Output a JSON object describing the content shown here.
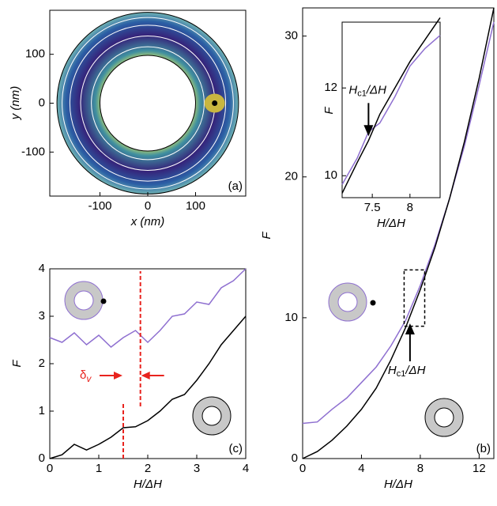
{
  "chart_data": [
    {
      "type": "ring",
      "label": "(a)",
      "xlabel": "x (nm)",
      "ylabel": "y (nm)",
      "xlim": [
        -205,
        205
      ],
      "ylim": [
        -190,
        190
      ],
      "xticks": [
        -100,
        0,
        100
      ],
      "yticks": [
        -100,
        0,
        100
      ],
      "outer_radius": 190,
      "inner_radius": 100,
      "vortex": [
        140,
        0
      ]
    },
    {
      "type": "line",
      "label": "(b)",
      "xlabel": "H/ΔH",
      "ylabel": "F",
      "xlim": [
        0,
        13
      ],
      "ylim": [
        0,
        32
      ],
      "xticks": [
        0,
        4,
        8,
        12
      ],
      "yticks": [
        0,
        10,
        20,
        30
      ],
      "x": [
        0,
        1,
        2,
        3,
        4,
        5,
        6,
        7,
        8,
        9,
        10,
        11,
        12,
        13
      ],
      "series": [
        {
          "name": "vortex",
          "color": "#8e6fd0",
          "values": [
            2.5,
            2.6,
            3.5,
            4.3,
            5.4,
            6.5,
            8,
            9.8,
            12.3,
            15.2,
            18.5,
            22.2,
            26.5,
            31
          ]
        },
        {
          "name": "no vortex",
          "color": "#000000",
          "values": [
            0,
            0.5,
            1.3,
            2.3,
            3.5,
            5,
            7,
            9.3,
            12,
            15,
            18.5,
            22.5,
            27,
            32
          ]
        }
      ],
      "arrow": {
        "x": 7.3,
        "y": 9.6,
        "text": [
          "H",
          "c1",
          "/ΔH"
        ]
      },
      "box": [
        6.9,
        8.3,
        9.4,
        13.4
      ]
    },
    {
      "type": "line",
      "xlabel": "H/ΔH",
      "ylabel": "F",
      "xlim": [
        7.1,
        8.4
      ],
      "ylim": [
        9.5,
        13.5
      ],
      "xticks": [
        7.5,
        8
      ],
      "yticks": [
        10,
        12
      ],
      "x": [
        7.1,
        7.3,
        7.45,
        7.6,
        7.8,
        8.0,
        8.1,
        8.2,
        8.4
      ],
      "series": [
        {
          "name": "vortex",
          "color": "#8e6fd0",
          "values": [
            9.8,
            10.4,
            11.0,
            11.2,
            11.8,
            12.5,
            12.7,
            12.9,
            13.2
          ]
        },
        {
          "name": "no vortex",
          "color": "#000000",
          "values": [
            9.6,
            10.3,
            10.8,
            11.4,
            12.0,
            12.6,
            12.85,
            13.1,
            13.6
          ]
        }
      ],
      "arrow_down": {
        "x": 7.45,
        "y": 10.9,
        "text": [
          "H",
          "c1",
          "/ΔH"
        ]
      }
    },
    {
      "type": "line",
      "label": "(c)",
      "xlabel": "H/ΔH",
      "ylabel": "F",
      "xlim": [
        0,
        4
      ],
      "ylim": [
        0,
        4
      ],
      "xticks": [
        0,
        1,
        2,
        3,
        4
      ],
      "yticks": [
        0,
        1,
        2,
        3,
        4
      ],
      "x": [
        0,
        0.25,
        0.5,
        0.75,
        1.0,
        1.25,
        1.5,
        1.75,
        2.0,
        2.25,
        2.5,
        2.75,
        3.0,
        3.25,
        3.5,
        3.75,
        4.0
      ],
      "series": [
        {
          "name": "vortex",
          "color": "#8e6fd0",
          "values": [
            2.55,
            2.45,
            2.65,
            2.4,
            2.6,
            2.35,
            2.55,
            2.7,
            2.45,
            2.7,
            3.0,
            3.05,
            3.3,
            3.25,
            3.6,
            3.75,
            4.0
          ]
        },
        {
          "name": "no vortex",
          "color": "#000000",
          "values": [
            0,
            0.08,
            0.3,
            0.18,
            0.3,
            0.45,
            0.65,
            0.67,
            0.8,
            1.0,
            1.25,
            1.35,
            1.65,
            2.0,
            2.4,
            2.7,
            3.0
          ]
        }
      ],
      "markers": [
        {
          "x": 1.5,
          "from": 0,
          "to": 1.15
        },
        {
          "x": 1.85,
          "from": 1.1,
          "to": 3.95
        }
      ],
      "delta": {
        "y": 1.75,
        "text": [
          "δ",
          "v"
        ]
      }
    }
  ]
}
